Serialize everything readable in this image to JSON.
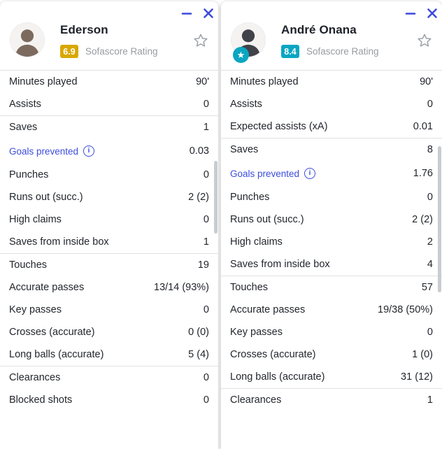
{
  "colors": {
    "accent_blue": "#3c4cdc",
    "rating_gold": "#d8a800",
    "rating_teal": "#0aa6c2",
    "avatar_star_teal": "#0aa6c2",
    "text_dark": "#22262c",
    "text_gray": "#989ba1",
    "divider": "#e1e1e1"
  },
  "icons": {
    "minimize": "minimize-icon",
    "close": "close-icon",
    "favorite": "star-outline-icon",
    "info": "i",
    "player_star": "★"
  },
  "panels": [
    {
      "name": "Ederson",
      "rating": "6.9",
      "rating_color": "#d8a800",
      "rating_label": "Sofascore Rating",
      "avatar_badge": false,
      "groups": [
        {
          "rows": [
            {
              "label": "Minutes played",
              "value": "90'"
            },
            {
              "label": "Assists",
              "value": "0"
            }
          ]
        },
        {
          "rows": [
            {
              "label": "Saves",
              "value": "1"
            },
            {
              "label": "Goals prevented",
              "value": "0.03",
              "info": true
            },
            {
              "label": "Punches",
              "value": "0"
            },
            {
              "label": "Runs out (succ.)",
              "value": "2 (2)"
            },
            {
              "label": "High claims",
              "value": "0"
            },
            {
              "label": "Saves from inside box",
              "value": "1"
            }
          ]
        },
        {
          "rows": [
            {
              "label": "Touches",
              "value": "19"
            },
            {
              "label": "Accurate passes",
              "value": "13/14 (93%)"
            },
            {
              "label": "Key passes",
              "value": "0"
            },
            {
              "label": "Crosses (accurate)",
              "value": "0 (0)"
            },
            {
              "label": "Long balls (accurate)",
              "value": "5 (4)"
            }
          ]
        },
        {
          "rows": [
            {
              "label": "Clearances",
              "value": "0"
            },
            {
              "label": "Blocked shots",
              "value": "0"
            }
          ]
        }
      ]
    },
    {
      "name": "André Onana",
      "rating": "8.4",
      "rating_color": "#0aa6c2",
      "rating_label": "Sofascore Rating",
      "avatar_badge": true,
      "groups": [
        {
          "rows": [
            {
              "label": "Minutes played",
              "value": "90'"
            },
            {
              "label": "Assists",
              "value": "0"
            },
            {
              "label": "Expected assists (xA)",
              "value": "0.01"
            }
          ]
        },
        {
          "rows": [
            {
              "label": "Saves",
              "value": "8"
            },
            {
              "label": "Goals prevented",
              "value": "1.76",
              "info": true
            },
            {
              "label": "Punches",
              "value": "0"
            },
            {
              "label": "Runs out (succ.)",
              "value": "2 (2)"
            },
            {
              "label": "High claims",
              "value": "2"
            },
            {
              "label": "Saves from inside box",
              "value": "4"
            }
          ]
        },
        {
          "rows": [
            {
              "label": "Touches",
              "value": "57"
            },
            {
              "label": "Accurate passes",
              "value": "19/38 (50%)"
            },
            {
              "label": "Key passes",
              "value": "0"
            },
            {
              "label": "Crosses (accurate)",
              "value": "1 (0)"
            },
            {
              "label": "Long balls (accurate)",
              "value": "31 (12)"
            }
          ]
        },
        {
          "rows": [
            {
              "label": "Clearances",
              "value": "1"
            }
          ]
        }
      ]
    }
  ]
}
